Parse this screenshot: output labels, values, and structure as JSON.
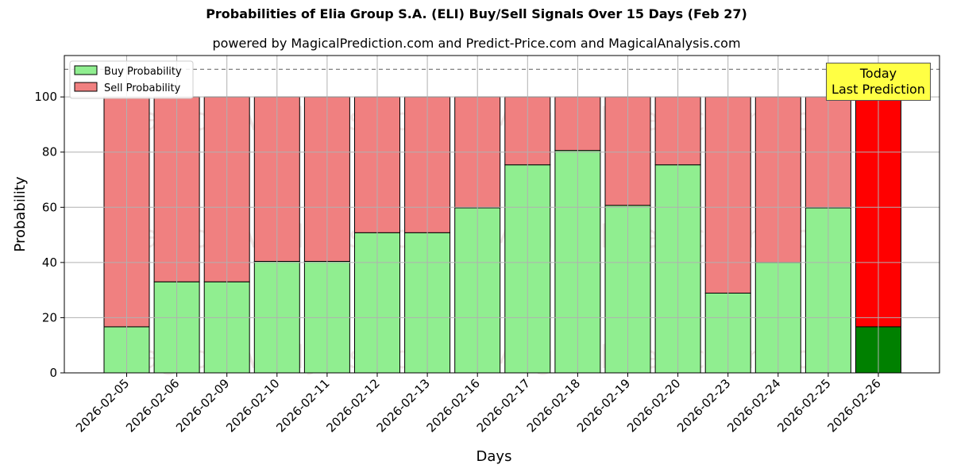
{
  "chart_data": {
    "type": "bar",
    "title": "Probabilities of Elia Group S.A. (ELI) Buy/Sell Signals Over 15 Days (Feb 27)",
    "subtitle": "powered by MagicalPrediction.com and Predict-Price.com and MagicalAnalysis.com",
    "xlabel": "Days",
    "ylabel": "Probability",
    "ylim": [
      0,
      115
    ],
    "yticks": [
      "0",
      "20",
      "40",
      "60",
      "80",
      "100"
    ],
    "categories": [
      "2026-02-05",
      "2026-02-06",
      "2026-02-09",
      "2026-02-10",
      "2026-02-11",
      "2026-02-12",
      "2026-02-13",
      "2026-02-16",
      "2026-02-17",
      "2026-02-18",
      "2026-02-19",
      "2026-02-20",
      "2026-02-23",
      "2026-02-24",
      "2026-02-25",
      "2026-02-26"
    ],
    "series": [
      {
        "name": "Buy Probability",
        "values": [
          16.7,
          33,
          33,
          40.4,
          40.4,
          50.8,
          50.8,
          59.8,
          75.4,
          80.6,
          60.7,
          75.4,
          28.9,
          40,
          59.8,
          16.7
        ]
      },
      {
        "name": "Sell Probability",
        "values": [
          83.3,
          67,
          67,
          59.6,
          59.6,
          49.2,
          49.2,
          40.2,
          24.6,
          19.4,
          39.3,
          24.6,
          71.1,
          60,
          40.2,
          83.3
        ]
      }
    ],
    "stacked": true,
    "reference_line": 110,
    "grid": true,
    "legend_position": "top-left",
    "colors": {
      "buy": "#90ee90",
      "sell": "#f08080",
      "today_buy": "#008000",
      "today_sell": "#ff0000"
    },
    "annotation": {
      "line1": "Today",
      "line2": "Last Prediction"
    },
    "watermarks": [
      "MagicalAnalysis.com",
      "MagicalPrediction.com"
    ]
  }
}
